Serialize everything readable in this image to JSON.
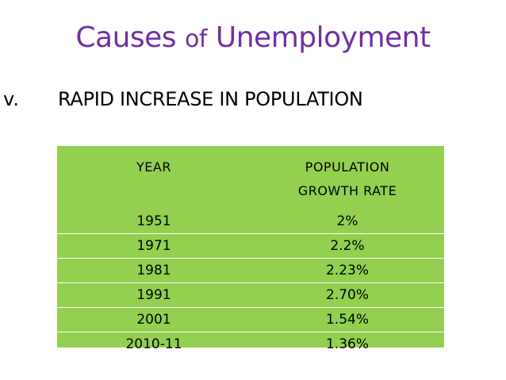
{
  "slide": {
    "title_part1": "Causes",
    "title_part2": "of",
    "title_part3": "Unemployment",
    "bullet_marker": "v.",
    "bullet_text": "RAPID INCREASE IN POPULATION"
  },
  "table": {
    "header_year": "YEAR",
    "header_rate_line1": "POPULATION",
    "header_rate_line2": "GROWTH RATE",
    "rows": [
      {
        "year": "1951",
        "rate": "2%"
      },
      {
        "year": "1971",
        "rate": "2.2%"
      },
      {
        "year": "1981",
        "rate": "2.23%"
      },
      {
        "year": "1991",
        "rate": "2.70%"
      },
      {
        "year": "2001",
        "rate": "1.54%"
      },
      {
        "year": "2010-11",
        "rate": "1.36%"
      }
    ]
  },
  "colors": {
    "title": "#7030a0",
    "table_background": "#92d050",
    "text": "#000000"
  }
}
